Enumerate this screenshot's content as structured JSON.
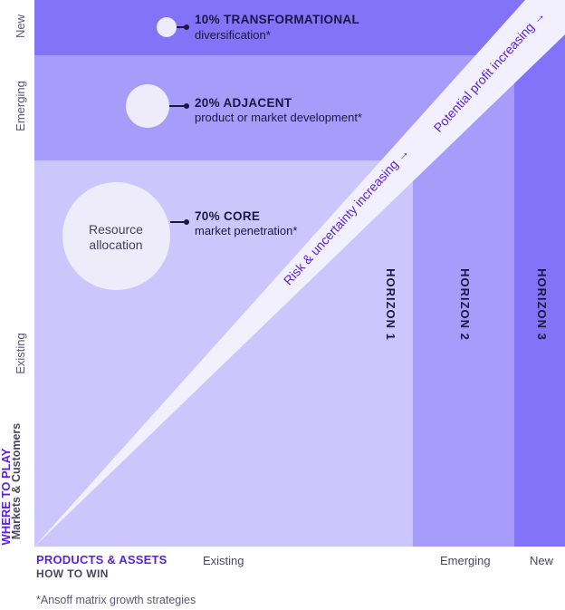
{
  "colors": {
    "horizon3": "#8273f8",
    "horizon2": "#a89cfb",
    "horizon1": "#cdc6fd",
    "beam": "#f2f0fe",
    "accent": "#5b22d9",
    "text_dark": "#1c1640"
  },
  "y_axis": {
    "title": "WHERE TO PLAY",
    "subtitle": "Markets & Customers",
    "levels": [
      "New",
      "Emerging",
      "Existing"
    ]
  },
  "x_axis": {
    "title": "PRODUCTS & ASSETS",
    "subtitle": "HOW TO WIN",
    "levels": [
      "Existing",
      "Emerging",
      "New"
    ]
  },
  "horizons": [
    {
      "label": "HORIZON 1"
    },
    {
      "label": "HORIZON 2"
    },
    {
      "label": "HORIZON 3"
    }
  ],
  "strategies": [
    {
      "title": "10% TRANSFORMATIONAL",
      "subtitle": "diversification*",
      "percent": 10
    },
    {
      "title": "20% ADJACENT",
      "subtitle": "product or market development*",
      "percent": 20
    },
    {
      "title": "70% CORE",
      "subtitle": "market penetration*",
      "percent": 70
    }
  ],
  "resource_label": "Resource allocation",
  "beam_labels": {
    "risk": "Risk & uncertainty increasing →",
    "profit": "Potential profit increasing →"
  },
  "footnote": "*Ansoff matrix growth strategies"
}
